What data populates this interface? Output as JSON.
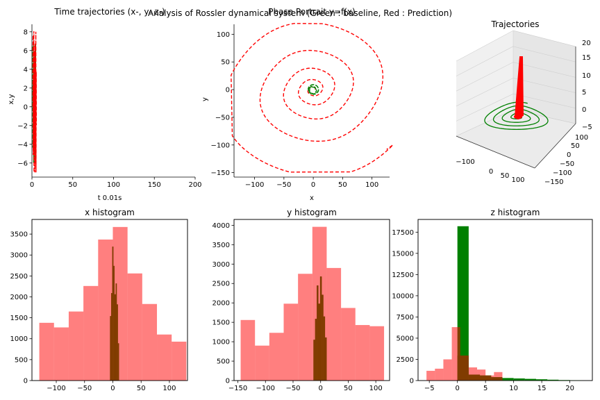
{
  "figure": {
    "suptitle": "Analysis of Rossler dynamical system (Green : baseline, Red : Prediction)",
    "colors": {
      "baseline": "#008000",
      "prediction": "#ff0000",
      "overlap": "#803c00",
      "pred_hist": "#ff8080"
    }
  },
  "chart_data": [
    {
      "id": "time",
      "type": "line",
      "title": "Time trajectories (x-, y- z-)",
      "xlabel": "t 0.01s",
      "ylabel": "x,y",
      "xlim": [
        0,
        200
      ],
      "ylim": [
        -7.5,
        8.8
      ],
      "xticks": [
        0,
        50,
        100,
        150,
        200
      ],
      "yticks": [
        -6,
        -4,
        -2,
        0,
        2,
        4,
        6,
        8
      ],
      "grid": false,
      "note_series": [
        "baseline (green, dashed)",
        "prediction (red, dashed)"
      ]
    },
    {
      "id": "phase",
      "type": "line",
      "title": "Phase Portrait y=f(x)",
      "xlabel": "x",
      "ylabel": "y",
      "xlim": [
        -135,
        130
      ],
      "ylim": [
        -158,
        118
      ],
      "xticks": [
        -100,
        -50,
        0,
        50,
        100
      ],
      "yticks": [
        -150,
        -100,
        -50,
        0,
        50,
        100
      ],
      "grid": false
    },
    {
      "id": "traj3d",
      "type": "line",
      "title": "Trajectories",
      "x_ticks": [
        -100,
        0,
        50,
        100
      ],
      "y_ticks": [
        -150,
        -100,
        -50,
        0,
        50,
        100
      ],
      "z_ticks": [
        -5,
        0,
        5,
        10,
        15,
        20
      ],
      "grid": true
    },
    {
      "id": "xhist",
      "type": "bar",
      "title": "x histogram",
      "xlim": [
        -143,
        132
      ],
      "ylim": [
        0,
        3850
      ],
      "xticks": [
        -100,
        -50,
        0,
        50,
        100
      ],
      "yticks": [
        0,
        500,
        1000,
        1500,
        2000,
        2500,
        3000,
        3500
      ],
      "series": [
        {
          "name": "Prediction",
          "bins": [
            -130,
            -104,
            -78,
            -52,
            -26,
            0,
            26,
            52,
            78,
            104,
            130
          ],
          "values": [
            1380,
            1270,
            1650,
            2260,
            3370,
            3670,
            2560,
            1830,
            1100,
            930
          ]
        },
        {
          "name": "Baseline",
          "bins": [
            -5,
            -3,
            -1,
            1,
            3,
            5,
            7,
            9,
            11
          ],
          "values": [
            1540,
            2090,
            3200,
            2740,
            2060,
            2320,
            1820,
            890
          ]
        }
      ]
    },
    {
      "id": "yhist",
      "type": "bar",
      "title": "y histogram",
      "xlim": [
        -157,
        125
      ],
      "ylim": [
        0,
        4150
      ],
      "xticks": [
        -150,
        -100,
        -50,
        0,
        50,
        100
      ],
      "yticks": [
        0,
        500,
        1000,
        1500,
        2000,
        2500,
        3000,
        3500,
        4000
      ],
      "series": [
        {
          "name": "Prediction",
          "bins": [
            -145,
            -119,
            -93,
            -67,
            -41,
            -15,
            11,
            37,
            63,
            89,
            115
          ],
          "values": [
            1560,
            900,
            1230,
            1980,
            2750,
            3960,
            2900,
            1870,
            1430,
            1400
          ]
        },
        {
          "name": "Baseline",
          "bins": [
            -13,
            -10,
            -7,
            -4,
            -1,
            2,
            5,
            8,
            11
          ],
          "values": [
            1050,
            1590,
            2450,
            1980,
            2680,
            2210,
            1650,
            1110
          ]
        }
      ]
    },
    {
      "id": "zhist",
      "type": "bar",
      "title": "z histogram",
      "xlim": [
        -7,
        24
      ],
      "ylim": [
        0,
        19000
      ],
      "xticks": [
        -5,
        0,
        5,
        10,
        15,
        20
      ],
      "yticks": [
        0,
        2500,
        5000,
        7500,
        10000,
        12500,
        15000,
        17500
      ],
      "series": [
        {
          "name": "Prediction",
          "bins": [
            -5.5,
            -4,
            -2.5,
            -1,
            0.5,
            2,
            3.5,
            5,
            6.5,
            8
          ],
          "values": [
            1150,
            1400,
            2500,
            6300,
            2950,
            1550,
            1300,
            600,
            1000
          ]
        },
        {
          "name": "Baseline",
          "bins": [
            0,
            2,
            4,
            6,
            8,
            10,
            12,
            14,
            16,
            18,
            20,
            22
          ],
          "values": [
            18200,
            700,
            600,
            400,
            300,
            250,
            200,
            150,
            100,
            60,
            30
          ]
        }
      ]
    }
  ]
}
